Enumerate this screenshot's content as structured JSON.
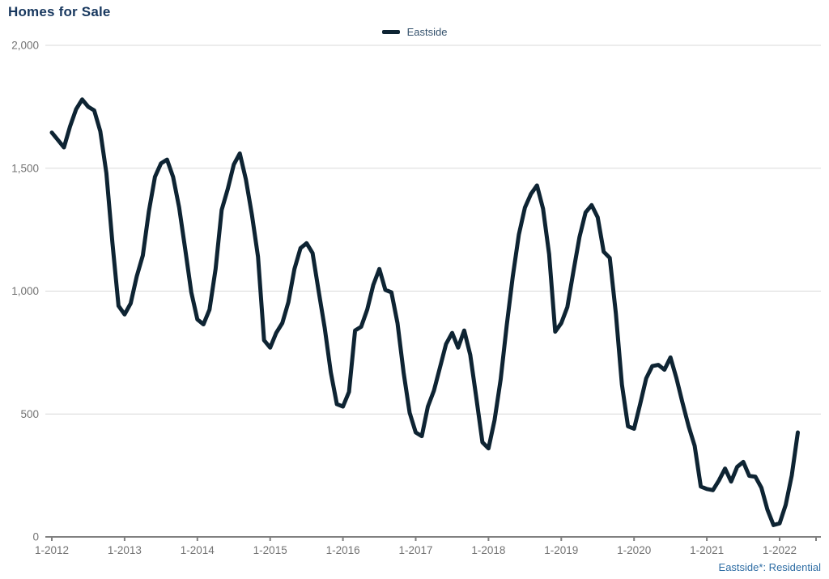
{
  "header": {
    "title": "Homes for Sale"
  },
  "legend": {
    "series_label": "Eastside"
  },
  "footer": {
    "note": "Eastside*: Residential"
  },
  "colors": {
    "title_text": "#17375e",
    "series_line": "#0e2433",
    "gridline": "#d9d9d9",
    "axis_line": "#808080",
    "tick_label": "#737373",
    "footnote_text": "#2e6da4",
    "background": "#ffffff"
  },
  "chart_data": {
    "type": "line",
    "title": "Homes for Sale",
    "xlabel": "",
    "ylabel": "",
    "ylim": [
      0,
      2000
    ],
    "grid": "horizontal",
    "legend_position": "top-center",
    "x_frequency": "monthly",
    "x_first": "1-2012",
    "x_last": "4-2022",
    "x_tick_labels": [
      "1-2012",
      "1-2013",
      "1-2014",
      "1-2015",
      "1-2016",
      "1-2017",
      "1-2018",
      "1-2019",
      "1-2020",
      "1-2021",
      "1-2022"
    ],
    "y_ticks": [
      0,
      500,
      1000,
      1500,
      2000
    ],
    "y_tick_labels": [
      "0",
      "500",
      "1,000",
      "1,500",
      "2,000"
    ],
    "series": [
      {
        "name": "Eastside",
        "color": "#0e2433",
        "values": [
          1645,
          1615,
          1585,
          1670,
          1740,
          1780,
          1750,
          1735,
          1650,
          1480,
          1195,
          940,
          905,
          950,
          1060,
          1145,
          1325,
          1465,
          1520,
          1535,
          1465,
          1340,
          1170,
          995,
          885,
          865,
          925,
          1090,
          1330,
          1415,
          1515,
          1560,
          1455,
          1310,
          1140,
          800,
          770,
          830,
          870,
          955,
          1090,
          1175,
          1195,
          1155,
          1000,
          850,
          670,
          540,
          530,
          590,
          840,
          855,
          925,
          1025,
          1090,
          1005,
          995,
          870,
          670,
          505,
          425,
          410,
          530,
          595,
          690,
          785,
          830,
          770,
          840,
          740,
          565,
          385,
          360,
          475,
          640,
          860,
          1060,
          1230,
          1340,
          1395,
          1430,
          1335,
          1150,
          835,
          870,
          935,
          1080,
          1220,
          1320,
          1350,
          1300,
          1160,
          1135,
          910,
          620,
          450,
          440,
          540,
          645,
          695,
          700,
          680,
          730,
          645,
          545,
          450,
          370,
          205,
          195,
          190,
          230,
          278,
          225,
          285,
          305,
          248,
          245,
          200,
          110,
          48,
          55,
          130,
          250,
          425
        ]
      }
    ]
  }
}
